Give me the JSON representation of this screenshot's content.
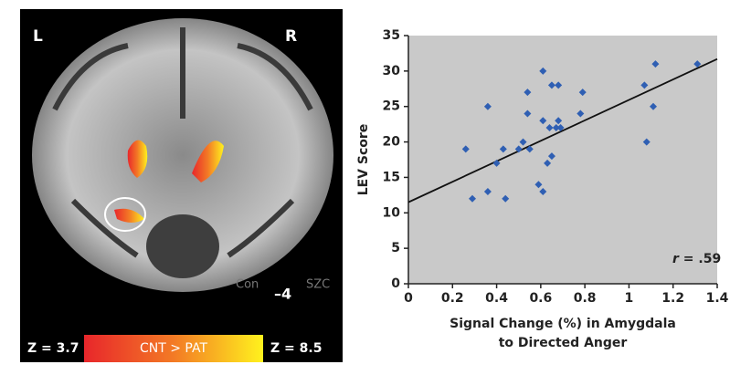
{
  "brain_panel": {
    "left_label": "L",
    "right_label": "R",
    "overlay_labels": [
      "Con",
      "SZC"
    ],
    "slice_label": "–4",
    "scale_min_label": "Z = 3.7",
    "scale_title": "CNT > PAT",
    "scale_max_label": "Z = 8.5"
  },
  "chart_data": {
    "type": "scatter",
    "x_label": [
      "Signal Change (%) in Amygdala",
      "to Directed Anger"
    ],
    "y_label": "LEV Score",
    "annotation": {
      "symbol": "r",
      "text": " = .59"
    },
    "color": "#2f5fb3",
    "background": "#c9c9c9",
    "x": [
      0.26,
      0.29,
      0.36,
      0.36,
      0.4,
      0.43,
      0.44,
      0.5,
      0.52,
      0.54,
      0.54,
      0.55,
      0.59,
      0.61,
      0.61,
      0.61,
      0.63,
      0.64,
      0.65,
      0.65,
      0.67,
      0.68,
      0.68,
      0.69,
      0.78,
      0.79,
      1.07,
      1.08,
      1.11,
      1.12,
      1.31
    ],
    "values": [
      19,
      12,
      25,
      13,
      17,
      19,
      12,
      19,
      20,
      24,
      27,
      19,
      14,
      13,
      30,
      23,
      17,
      22,
      18,
      28,
      22,
      28,
      23,
      22,
      24,
      27,
      28,
      20,
      25,
      31,
      31
    ],
    "trend_line": {
      "x": [
        0,
        1.4
      ],
      "y": [
        11.5,
        31.7
      ]
    },
    "xlim": [
      0,
      1.4
    ],
    "ylim": [
      0,
      35
    ],
    "xticks": [
      0,
      0.2,
      0.4,
      0.6,
      0.8,
      1,
      1.2,
      1.4
    ],
    "yticks": [
      0,
      5,
      10,
      15,
      20,
      25,
      30,
      35
    ]
  }
}
